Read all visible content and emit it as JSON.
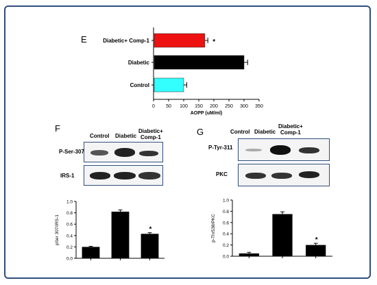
{
  "panels": {
    "E": {
      "letter": "E"
    },
    "F": {
      "letter": "F",
      "lane_labels": [
        "Control",
        "Diabetic",
        "Diabetic+\nComp-1"
      ],
      "blot_labels": [
        "P-Ser-307",
        "IRS-1"
      ]
    },
    "G": {
      "letter": "G",
      "lane_labels": [
        "Control",
        "Diabetic",
        "Diabetic+\nComp-1"
      ],
      "blot_labels": [
        "P-Tyr-311",
        "PKC"
      ]
    }
  },
  "colors": {
    "control_bar": "#33ffff",
    "diabetic_bar": "#000000",
    "comp_bar": "#ee1111",
    "frame": "#2f4d7a"
  },
  "chart_data": [
    {
      "id": "E",
      "type": "bar",
      "orientation": "horizontal",
      "categories": [
        "Control",
        "Diabetic",
        "Diabetic+ Comp-1"
      ],
      "values": [
        100,
        300,
        170
      ],
      "errors": [
        10,
        12,
        10
      ],
      "colors": [
        "#33ffff",
        "#000000",
        "#ee1111"
      ],
      "annotations": [
        "",
        "",
        "*"
      ],
      "xlabel": "AOPP (uM/ml)",
      "xlim": [
        0,
        350
      ],
      "xticks": [
        0,
        50,
        100,
        150,
        200,
        250,
        300,
        350
      ]
    },
    {
      "id": "F",
      "type": "bar",
      "categories": [
        "",
        "",
        ""
      ],
      "values": [
        0.2,
        0.82,
        0.43
      ],
      "errors": [
        0.01,
        0.03,
        0.02
      ],
      "annotations": [
        "",
        "",
        "*"
      ],
      "ylabel": "pSer 307/IRS-1",
      "ylim": [
        0,
        1.0
      ],
      "yticks": [
        "0.0",
        "0.2",
        "0.4",
        "0.6",
        "0.8",
        "1.0"
      ]
    },
    {
      "id": "G",
      "type": "bar",
      "categories": [
        "",
        "",
        ""
      ],
      "values": [
        0.05,
        0.75,
        0.2
      ],
      "errors": [
        0.02,
        0.04,
        0.03
      ],
      "annotations": [
        "",
        "",
        "*"
      ],
      "ylabel": "p-Thr538/PKC",
      "ylim": [
        0,
        1.0
      ],
      "yticks": [
        "0.0",
        "0.2",
        "0.4",
        "0.6",
        "0.8",
        "1.0"
      ]
    }
  ]
}
